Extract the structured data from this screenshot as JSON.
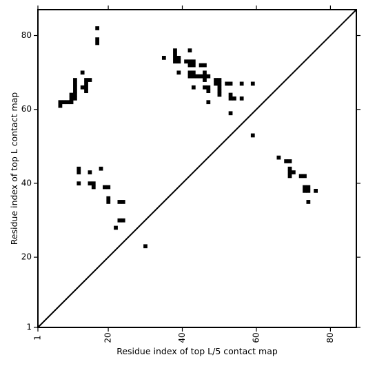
{
  "chart_data": {
    "type": "heatmap",
    "title": "",
    "xlabel": "Residue index of top L/5 contact map",
    "ylabel": "Residue index of top L contact map",
    "xlim": [
      1,
      87
    ],
    "ylim": [
      1,
      87
    ],
    "x_ticks": [
      1,
      20,
      40,
      60,
      80
    ],
    "y_ticks": [
      1,
      20,
      40,
      60,
      80
    ],
    "x_tick_labels": [
      "1",
      "20",
      "40",
      "60",
      "80"
    ],
    "y_tick_labels": [
      "1",
      "20",
      "40",
      "60",
      "80"
    ],
    "diagonal": true,
    "cell_color": "#000000",
    "upper_contacts": [
      [
        17,
        82
      ],
      [
        17,
        79
      ],
      [
        17,
        78
      ],
      [
        7,
        62
      ],
      [
        8,
        62
      ],
      [
        9,
        62
      ],
      [
        7,
        61
      ],
      [
        10,
        64
      ],
      [
        11,
        64
      ],
      [
        10,
        63
      ],
      [
        11,
        63
      ],
      [
        10,
        62
      ],
      [
        11,
        68
      ],
      [
        11,
        67
      ],
      [
        11,
        66
      ],
      [
        11,
        65
      ],
      [
        13,
        70
      ],
      [
        13,
        66
      ],
      [
        14,
        66
      ],
      [
        14,
        68
      ],
      [
        15,
        68
      ],
      [
        14,
        67
      ],
      [
        14,
        65
      ],
      [
        35,
        74
      ],
      [
        38,
        76
      ],
      [
        38,
        75
      ],
      [
        38,
        74
      ],
      [
        39,
        74
      ],
      [
        38,
        73
      ],
      [
        39,
        73
      ],
      [
        39,
        70
      ],
      [
        42,
        76
      ],
      [
        41,
        73
      ],
      [
        42,
        73
      ],
      [
        43,
        73
      ],
      [
        42,
        72
      ],
      [
        43,
        72
      ],
      [
        42,
        70
      ],
      [
        43,
        70
      ],
      [
        42,
        69
      ],
      [
        43,
        69
      ],
      [
        44,
        69
      ],
      [
        45,
        69
      ],
      [
        46,
        69
      ],
      [
        47,
        69
      ],
      [
        46,
        70
      ],
      [
        43,
        66
      ],
      [
        45,
        72
      ],
      [
        46,
        72
      ],
      [
        46,
        68
      ],
      [
        46,
        66
      ],
      [
        47,
        66
      ],
      [
        47,
        65
      ],
      [
        47,
        62
      ],
      [
        49,
        68
      ],
      [
        50,
        68
      ],
      [
        49,
        67
      ],
      [
        50,
        67
      ],
      [
        50,
        66
      ],
      [
        50,
        65
      ],
      [
        50,
        64
      ],
      [
        52,
        67
      ],
      [
        53,
        67
      ],
      [
        53,
        64
      ],
      [
        53,
        63
      ],
      [
        54,
        63
      ],
      [
        53,
        59
      ],
      [
        56,
        67
      ],
      [
        56,
        63
      ],
      [
        59,
        67
      ]
    ],
    "lower_contacts": [
      [
        12,
        44
      ],
      [
        12,
        43
      ],
      [
        15,
        43
      ],
      [
        18,
        44
      ],
      [
        12,
        40
      ],
      [
        15,
        40
      ],
      [
        16,
        40
      ],
      [
        16,
        39
      ],
      [
        19,
        39
      ],
      [
        20,
        39
      ],
      [
        20,
        36
      ],
      [
        20,
        35
      ],
      [
        23,
        35
      ],
      [
        24,
        35
      ],
      [
        22,
        28
      ],
      [
        23,
        30
      ],
      [
        24,
        30
      ],
      [
        30,
        23
      ],
      [
        59,
        53
      ],
      [
        66,
        47
      ],
      [
        68,
        46
      ],
      [
        69,
        46
      ],
      [
        69,
        44
      ],
      [
        69,
        43
      ],
      [
        70,
        43
      ],
      [
        69,
        42
      ],
      [
        72,
        42
      ],
      [
        73,
        42
      ],
      [
        73,
        39
      ],
      [
        74,
        39
      ],
      [
        73,
        38
      ],
      [
        74,
        38
      ],
      [
        76,
        38
      ],
      [
        74,
        35
      ]
    ]
  }
}
